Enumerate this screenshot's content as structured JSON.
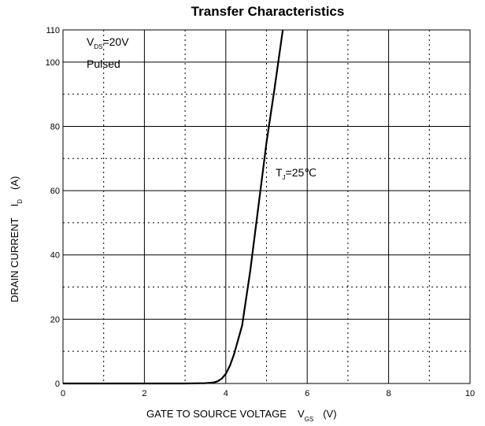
{
  "chart_data": {
    "type": "line",
    "title": "Transfer Characteristics",
    "xlabel": {
      "main": "GATE TO SOURCE VOLTAGE",
      "symbol": "V",
      "subscript": "GS",
      "unit": "(V)"
    },
    "ylabel": {
      "main": "DRAIN CURRENT",
      "symbol": "I",
      "subscript": "D",
      "unit": "(A)"
    },
    "xlim": [
      0,
      10
    ],
    "ylim": [
      0,
      110
    ],
    "xticks": [
      0,
      2,
      4,
      6,
      8,
      10
    ],
    "yticks": [
      0,
      20,
      40,
      60,
      80,
      100,
      110
    ],
    "grid": {
      "solid_x": [
        2,
        4,
        6,
        8
      ],
      "dotted_x": [
        1,
        3,
        5,
        7,
        9
      ],
      "solid_y": [
        20,
        40,
        60,
        80,
        100
      ],
      "dotted_y": [
        10,
        30,
        50,
        70,
        90
      ]
    },
    "series": [
      {
        "x": [
          0,
          3.0,
          3.5,
          3.7,
          3.8,
          3.9,
          4.0,
          4.1,
          4.2,
          4.4,
          4.6,
          4.8,
          5.0,
          5.2,
          5.4
        ],
        "y": [
          0,
          0,
          0.1,
          0.3,
          0.7,
          1.5,
          3,
          5.5,
          9,
          18,
          35,
          55,
          75,
          92,
          110
        ],
        "color": "#000000"
      }
    ],
    "annotations": [
      {
        "symbol": "V",
        "subscript": "DS",
        "text": "=20V"
      },
      {
        "text": "Pulsed"
      },
      {
        "symbol": "T",
        "subscript": "J",
        "text": "=25℃"
      }
    ]
  }
}
